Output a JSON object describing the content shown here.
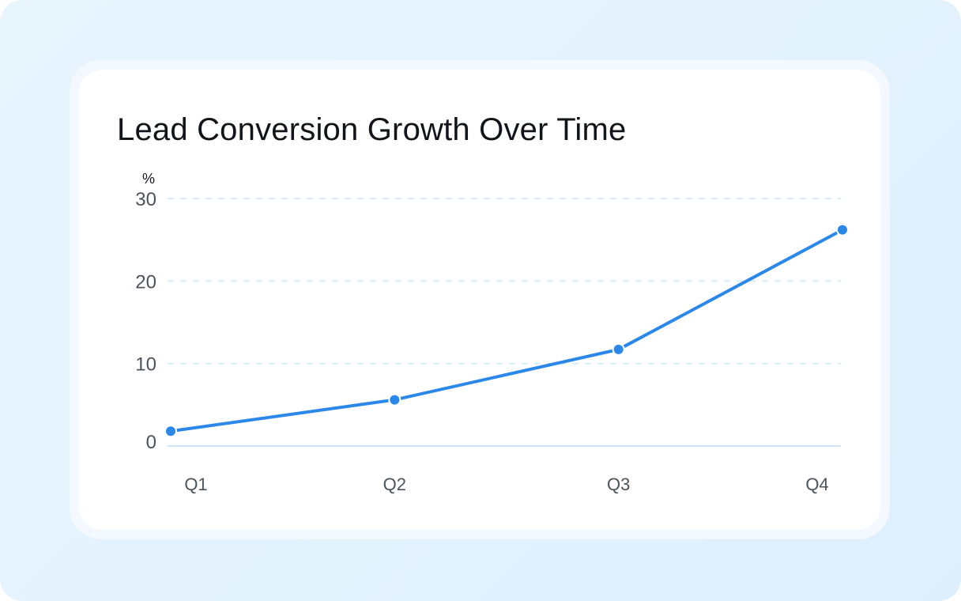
{
  "title": "Lead Conversion Growth Over Time",
  "colors": {
    "line": "#2b88e8",
    "grid": "#d6ecfa",
    "baseline": "#cfe6f8"
  },
  "chart_data": {
    "type": "line",
    "title": "Lead Conversion Growth Over Time",
    "xlabel": "",
    "ylabel": "%",
    "categories": [
      "Q1",
      "Q2",
      "Q3",
      "Q4"
    ],
    "series": [
      {
        "values": [
          1.8,
          5.6,
          11.7,
          26.2
        ]
      }
    ],
    "ylim": [
      0,
      30
    ],
    "yticks": [
      "0",
      "10",
      "20",
      "30"
    ],
    "grid": true,
    "grid_style": "dashed"
  }
}
